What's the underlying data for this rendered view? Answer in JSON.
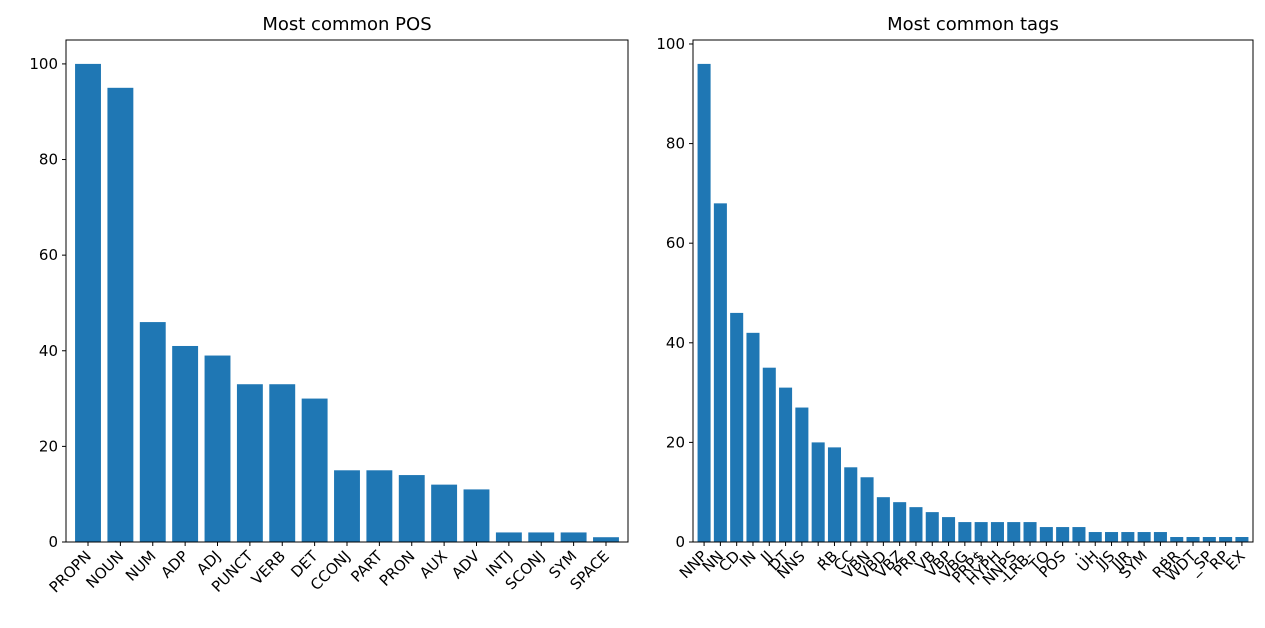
{
  "colors": {
    "bar": "#1f77b4",
    "axis": "#000000",
    "background": "#ffffff"
  },
  "chart_data": [
    {
      "type": "bar",
      "title": "Most common POS",
      "xlabel": "",
      "ylabel": "",
      "ylim": [
        0,
        105
      ],
      "yticks": [
        0,
        20,
        40,
        60,
        80,
        100
      ],
      "grid": false,
      "categories": [
        "PROPN",
        "NOUN",
        "NUM",
        "ADP",
        "ADJ",
        "PUNCT",
        "VERB",
        "DET",
        "CCONJ",
        "PART",
        "PRON",
        "AUX",
        "ADV",
        "INTJ",
        "SCONJ",
        "SYM",
        "SPACE"
      ],
      "values": [
        100,
        95,
        46,
        41,
        39,
        33,
        33,
        30,
        15,
        15,
        14,
        12,
        11,
        2,
        2,
        2,
        1
      ]
    },
    {
      "type": "bar",
      "title": "Most common tags",
      "xlabel": "",
      "ylabel": "",
      "ylim": [
        0,
        100.8
      ],
      "yticks": [
        0,
        20,
        40,
        60,
        80,
        100
      ],
      "grid": false,
      "categories": [
        "NNP",
        "NN",
        "CD",
        "IN",
        "JJ",
        "DT",
        "NNS",
        ",",
        "RB",
        "CC",
        "VBN",
        "VBD",
        "VBZ",
        "PRP",
        "VB",
        "VBP",
        "VBG",
        "PRP$",
        "HYPH",
        "NNPS",
        "-LRB-",
        "TO",
        "POS",
        ":",
        "UH",
        "JJS",
        "JJR",
        "SYM",
        ".",
        "RBR",
        "WDT",
        "_SP",
        "RP",
        "EX"
      ],
      "values": [
        96,
        68,
        46,
        42,
        35,
        31,
        27,
        20,
        19,
        15,
        13,
        9,
        8,
        7,
        6,
        5,
        4,
        4,
        4,
        4,
        4,
        3,
        3,
        3,
        2,
        2,
        2,
        2,
        2,
        1,
        1,
        1,
        1,
        1
      ]
    }
  ]
}
